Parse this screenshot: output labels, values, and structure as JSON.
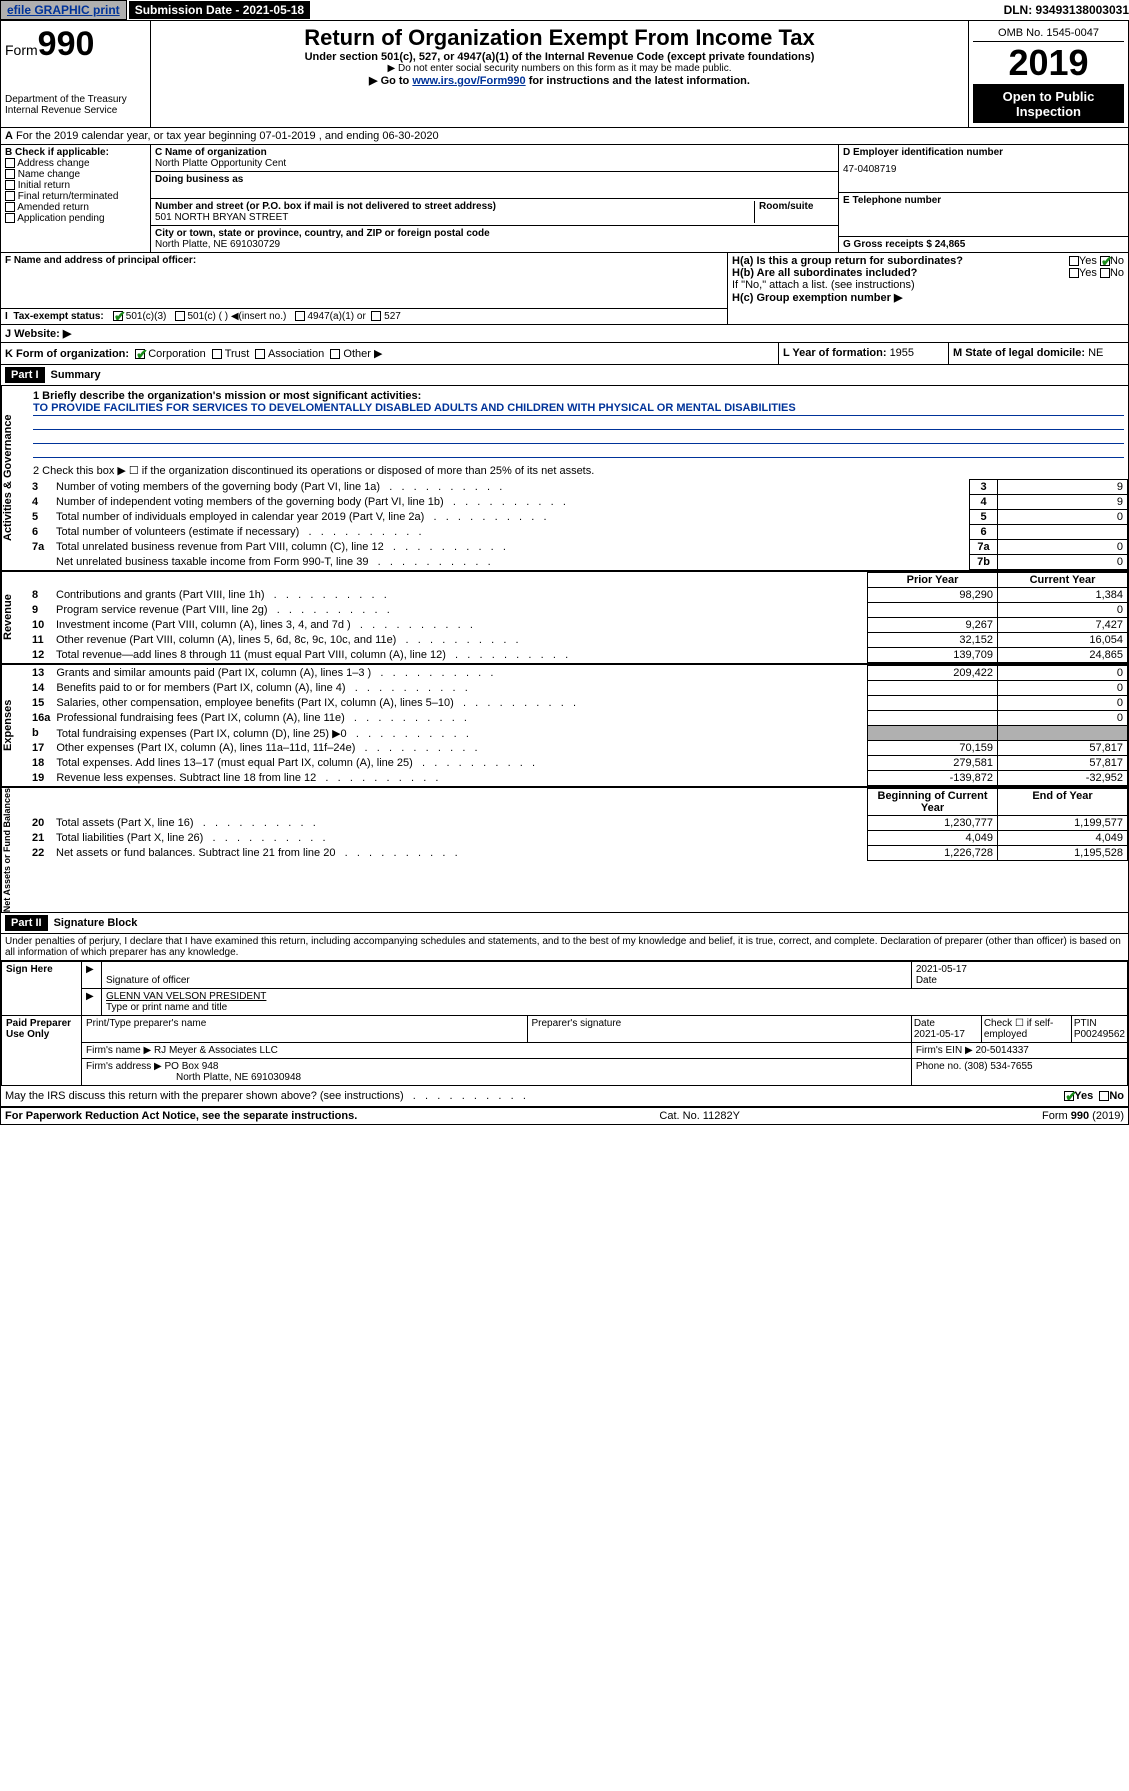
{
  "topbar": {
    "efile_link": "efile GRAPHIC print",
    "submission": "Submission Date - 2021-05-18",
    "dln": "DLN: 93493138003031"
  },
  "header": {
    "form_prefix": "Form",
    "form_number": "990",
    "title": "Return of Organization Exempt From Income Tax",
    "subtitle1": "Under section 501(c), 527, or 4947(a)(1) of the Internal Revenue Code (except private foundations)",
    "subtitle2": "▶ Do not enter social security numbers on this form as it may be made public.",
    "subtitle3_pre": "▶ Go to ",
    "subtitle3_link": "www.irs.gov/Form990",
    "subtitle3_post": " for instructions and the latest information.",
    "dept1": "Department of the Treasury",
    "dept2": "Internal Revenue Service",
    "omb": "OMB No. 1545-0047",
    "year": "2019",
    "open_public": "Open to Public Inspection"
  },
  "secA": "For the 2019 calendar year, or tax year beginning 07-01-2019    , and ending 06-30-2020",
  "boxB": {
    "title": "B Check if applicable:",
    "opts": [
      "Address change",
      "Name change",
      "Initial return",
      "Final return/terminated",
      "Amended return",
      "Application pending"
    ]
  },
  "boxC": {
    "label_name": "C Name of organization",
    "name": "North Platte Opportunity Cent",
    "label_dba": "Doing business as",
    "label_addr": "Number and street (or P.O. box if mail is not delivered to street address)",
    "label_room": "Room/suite",
    "addr": "501 NORTH BRYAN STREET",
    "label_city": "City or town, state or province, country, and ZIP or foreign postal code",
    "city": "North Platte, NE  691030729"
  },
  "boxD": {
    "label": "D Employer identification number",
    "ein": "47-0408719"
  },
  "boxE": {
    "label": "E Telephone number"
  },
  "boxG": {
    "label": "G Gross receipts $ 24,865"
  },
  "boxF": {
    "label": "F Name and address of principal officer:"
  },
  "boxH": {
    "ha_label": "H(a)  Is this a group return for subordinates?",
    "hb_label": "H(b)  Are all subordinates included?",
    "hb_note": "If \"No,\" attach a list. (see instructions)",
    "hc_label": "H(c)  Group exemption number ▶",
    "yes": "Yes",
    "no": "No"
  },
  "taxExempt": {
    "label": "Tax-exempt status:",
    "c3": "501(c)(3)",
    "c": "501(c) (  ) ◀(insert no.)",
    "a1": "4947(a)(1) or",
    "s527": "527"
  },
  "website": {
    "label": "J   Website: ▶"
  },
  "formOrg": {
    "label": "K Form of organization:",
    "corp": "Corporation",
    "trust": "Trust",
    "assoc": "Association",
    "other": "Other ▶"
  },
  "yearForm": {
    "label": "L Year of formation: ",
    "val": "1955"
  },
  "domicile": {
    "label": "M State of legal domicile: ",
    "val": "NE"
  },
  "partI": {
    "bar": "Part I",
    "title": "Summary"
  },
  "partII": {
    "bar": "Part II",
    "title": "Signature Block"
  },
  "section_labels": {
    "ag": "Activities & Governance",
    "rev": "Revenue",
    "exp": "Expenses",
    "na": "Net Assets or Fund Balances"
  },
  "q1": {
    "label": "1  Briefly describe the organization's mission or most significant activities:",
    "text": "TO PROVIDE FACILITIES FOR SERVICES TO DEVELOMENTALLY DISABLED ADULTS AND CHILDREN WITH PHYSICAL OR MENTAL DISABILITIES"
  },
  "q2": "2   Check this box ▶ ☐  if the organization discontinued its operations or disposed of more than 25% of its net assets.",
  "rows_ag": [
    {
      "n": "3",
      "t": "Number of voting members of the governing body (Part VI, line 1a)",
      "b": "3",
      "v": "9"
    },
    {
      "n": "4",
      "t": "Number of independent voting members of the governing body (Part VI, line 1b)",
      "b": "4",
      "v": "9"
    },
    {
      "n": "5",
      "t": "Total number of individuals employed in calendar year 2019 (Part V, line 2a)",
      "b": "5",
      "v": "0"
    },
    {
      "n": "6",
      "t": "Total number of volunteers (estimate if necessary)",
      "b": "6",
      "v": ""
    },
    {
      "n": "7a",
      "t": "Total unrelated business revenue from Part VIII, column (C), line 12",
      "b": "7a",
      "v": "0"
    },
    {
      "n": "",
      "t": "Net unrelated business taxable income from Form 990-T, line 39",
      "b": "7b",
      "v": "0"
    }
  ],
  "col_headers": {
    "py": "Prior Year",
    "cy": "Current Year",
    "boy": "Beginning of Current Year",
    "eoy": "End of Year"
  },
  "rows_rev": [
    {
      "n": "8",
      "t": "Contributions and grants (Part VIII, line 1h)",
      "py": "98,290",
      "cy": "1,384"
    },
    {
      "n": "9",
      "t": "Program service revenue (Part VIII, line 2g)",
      "py": "",
      "cy": "0"
    },
    {
      "n": "10",
      "t": "Investment income (Part VIII, column (A), lines 3, 4, and 7d )",
      "py": "9,267",
      "cy": "7,427"
    },
    {
      "n": "11",
      "t": "Other revenue (Part VIII, column (A), lines 5, 6d, 8c, 9c, 10c, and 11e)",
      "py": "32,152",
      "cy": "16,054"
    },
    {
      "n": "12",
      "t": "Total revenue—add lines 8 through 11 (must equal Part VIII, column (A), line 12)",
      "py": "139,709",
      "cy": "24,865"
    }
  ],
  "rows_exp": [
    {
      "n": "13",
      "t": "Grants and similar amounts paid (Part IX, column (A), lines 1–3 )",
      "py": "209,422",
      "cy": "0"
    },
    {
      "n": "14",
      "t": "Benefits paid to or for members (Part IX, column (A), line 4)",
      "py": "",
      "cy": "0"
    },
    {
      "n": "15",
      "t": "Salaries, other compensation, employee benefits (Part IX, column (A), lines 5–10)",
      "py": "",
      "cy": "0"
    },
    {
      "n": "16a",
      "t": "Professional fundraising fees (Part IX, column (A), line 11e)",
      "py": "",
      "cy": "0"
    },
    {
      "n": "b",
      "t": "Total fundraising expenses (Part IX, column (D), line 25) ▶0",
      "py": "-",
      "cy": "-"
    },
    {
      "n": "17",
      "t": "Other expenses (Part IX, column (A), lines 11a–11d, 11f–24e)",
      "py": "70,159",
      "cy": "57,817"
    },
    {
      "n": "18",
      "t": "Total expenses. Add lines 13–17 (must equal Part IX, column (A), line 25)",
      "py": "279,581",
      "cy": "57,817"
    },
    {
      "n": "19",
      "t": "Revenue less expenses. Subtract line 18 from line 12",
      "py": "-139,872",
      "cy": "-32,952"
    }
  ],
  "rows_na": [
    {
      "n": "20",
      "t": "Total assets (Part X, line 16)",
      "py": "1,230,777",
      "cy": "1,199,577"
    },
    {
      "n": "21",
      "t": "Total liabilities (Part X, line 26)",
      "py": "4,049",
      "cy": "4,049"
    },
    {
      "n": "22",
      "t": "Net assets or fund balances. Subtract line 21 from line 20",
      "py": "1,226,728",
      "cy": "1,195,528"
    }
  ],
  "sig": {
    "perjury": "Under penalties of perjury, I declare that I have examined this return, including accompanying schedules and statements, and to the best of my knowledge and belief, it is true, correct, and complete. Declaration of preparer (other than officer) is based on all information of which preparer has any knowledge.",
    "sign_here": "Sign Here",
    "sig_officer": "Signature of officer",
    "date1": "2021-05-17",
    "date_lbl": "Date",
    "officer_name": "GLENN VAN VELSON  PRESIDENT",
    "type_name": "Type or print name and title",
    "paid": "Paid Preparer Use Only",
    "prep_name_lbl": "Print/Type preparer's name",
    "prep_sig_lbl": "Preparer's signature",
    "date2": "2021-05-17",
    "check_lbl": "Check ☐ if self-employed",
    "ptin_lbl": "PTIN",
    "ptin": "P00249562",
    "firm_name_lbl": "Firm's name    ▶",
    "firm_name": "RJ Meyer & Associates LLC",
    "firm_ein_lbl": "Firm's EIN ▶",
    "firm_ein": "20-5014337",
    "firm_addr_lbl": "Firm's address ▶",
    "firm_addr1": "PO Box 948",
    "firm_addr2": "North Platte, NE  691030948",
    "phone_lbl": "Phone no.",
    "phone": "(308) 534-7655",
    "discuss": "May the IRS discuss this return with the preparer shown above? (see instructions)",
    "paperwork": "For Paperwork Reduction Act Notice, see the separate instructions.",
    "cat": "Cat. No. 11282Y",
    "formfoot": "Form 990 (2019)"
  }
}
